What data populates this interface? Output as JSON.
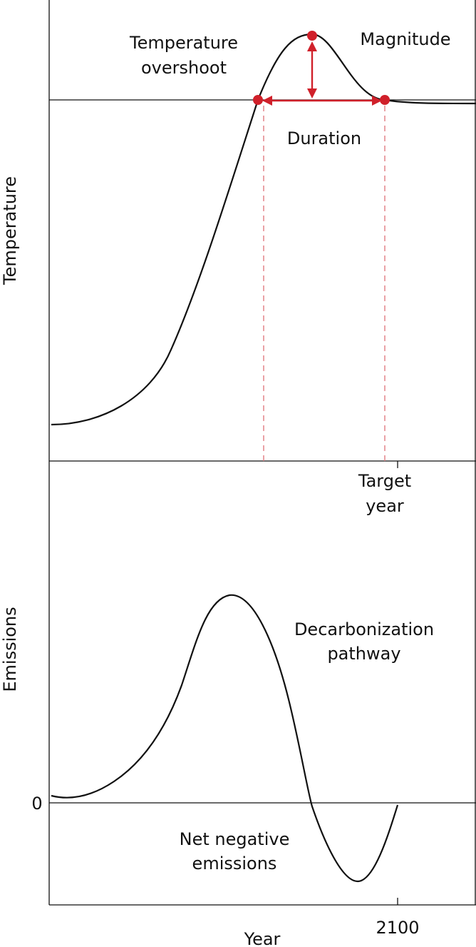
{
  "colors": {
    "ink": "#111111",
    "accent": "#d0202a",
    "dashed": "#e07a80"
  },
  "top_panel": {
    "ylabel": "Temperature",
    "label_overshoot_1": "Temperature",
    "label_overshoot_2": "overshoot",
    "label_magnitude": "Magnitude",
    "label_duration": "Duration",
    "target_label_1": "Target",
    "target_label_2": "year"
  },
  "bottom_panel": {
    "ylabel": "Emissions",
    "zero_tick": "0",
    "label_decarb_1": "Decarbonization",
    "label_decarb_2": "pathway",
    "label_netneg_1": "Net negative",
    "label_netneg_2": "emissions",
    "xlabel": "Year",
    "x_tick": "2100"
  }
}
